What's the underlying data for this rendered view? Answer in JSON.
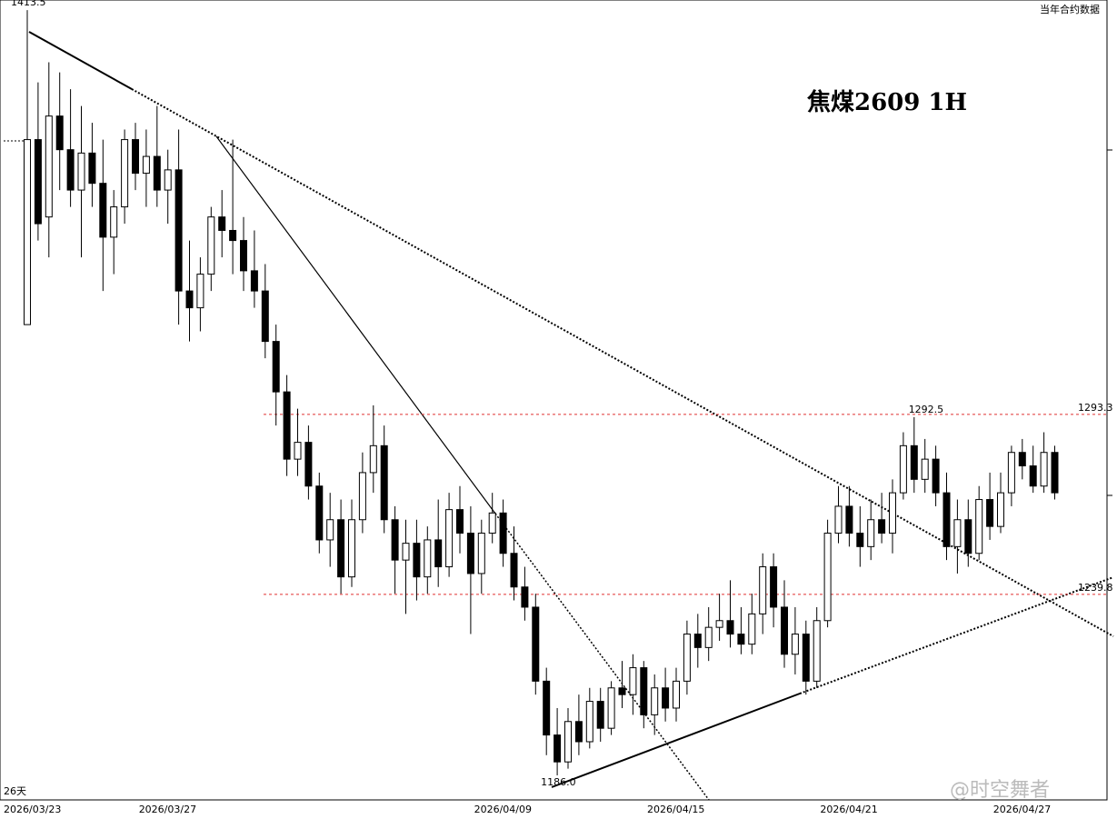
{
  "chart_data": {
    "type": "candlestick",
    "title": "焦煤2609 1H",
    "subtitle": "当年合约数据",
    "note": "26天",
    "watermark": "@时空舞者",
    "ylim": [
      1178.7,
      1416.5
    ],
    "candles": [
      [
        1320,
        1413.5,
        1320,
        1375
      ],
      [
        1375,
        1392,
        1345,
        1350
      ],
      [
        1352,
        1398,
        1340,
        1382
      ],
      [
        1382,
        1395,
        1360,
        1372
      ],
      [
        1372,
        1390,
        1355,
        1360
      ],
      [
        1360,
        1385,
        1340,
        1371
      ],
      [
        1371,
        1380,
        1355,
        1362
      ],
      [
        1362,
        1375,
        1330,
        1346
      ],
      [
        1346,
        1360,
        1335,
        1355
      ],
      [
        1355,
        1378,
        1350,
        1375
      ],
      [
        1375,
        1380,
        1360,
        1365
      ],
      [
        1365,
        1378,
        1355,
        1370
      ],
      [
        1370,
        1385,
        1355,
        1360
      ],
      [
        1360,
        1372,
        1350,
        1366
      ],
      [
        1366,
        1378,
        1320,
        1330
      ],
      [
        1330,
        1345,
        1315,
        1325
      ],
      [
        1325,
        1340,
        1318,
        1335
      ],
      [
        1335,
        1355,
        1330,
        1352
      ],
      [
        1352,
        1360,
        1340,
        1348
      ],
      [
        1348,
        1375,
        1335,
        1345
      ],
      [
        1345,
        1352,
        1330,
        1336
      ],
      [
        1336,
        1348,
        1325,
        1330
      ],
      [
        1330,
        1338,
        1310,
        1315
      ],
      [
        1315,
        1320,
        1290,
        1300
      ],
      [
        1300,
        1305,
        1275,
        1280
      ],
      [
        1280,
        1295,
        1275,
        1285
      ],
      [
        1285,
        1290,
        1268,
        1272
      ],
      [
        1272,
        1276,
        1252,
        1256
      ],
      [
        1256,
        1270,
        1248,
        1262
      ],
      [
        1262,
        1268,
        1240,
        1245
      ],
      [
        1245,
        1268,
        1242,
        1262
      ],
      [
        1262,
        1282,
        1258,
        1276
      ],
      [
        1276,
        1296,
        1270,
        1284
      ],
      [
        1284,
        1290,
        1258,
        1262
      ],
      [
        1262,
        1266,
        1240,
        1250
      ],
      [
        1250,
        1262,
        1234,
        1255
      ],
      [
        1255,
        1262,
        1238,
        1245
      ],
      [
        1245,
        1260,
        1240,
        1256
      ],
      [
        1256,
        1268,
        1242,
        1248
      ],
      [
        1248,
        1270,
        1245,
        1265
      ],
      [
        1265,
        1272,
        1252,
        1258
      ],
      [
        1258,
        1266,
        1228,
        1246
      ],
      [
        1246,
        1262,
        1240,
        1258
      ],
      [
        1258,
        1270,
        1255,
        1264
      ],
      [
        1264,
        1268,
        1248,
        1252
      ],
      [
        1252,
        1260,
        1238,
        1242
      ],
      [
        1242,
        1248,
        1232,
        1236
      ],
      [
        1236,
        1240,
        1210,
        1214
      ],
      [
        1214,
        1218,
        1192,
        1198
      ],
      [
        1198,
        1206,
        1186,
        1190
      ],
      [
        1190,
        1206,
        1188,
        1202
      ],
      [
        1202,
        1210,
        1192,
        1196
      ],
      [
        1196,
        1212,
        1194,
        1208
      ],
      [
        1208,
        1212,
        1196,
        1200
      ],
      [
        1200,
        1214,
        1198,
        1212
      ],
      [
        1212,
        1220,
        1206,
        1210
      ],
      [
        1210,
        1222,
        1204,
        1218
      ],
      [
        1218,
        1220,
        1200,
        1204
      ],
      [
        1204,
        1216,
        1198,
        1212
      ],
      [
        1212,
        1218,
        1202,
        1206
      ],
      [
        1206,
        1218,
        1202,
        1214
      ],
      [
        1214,
        1232,
        1210,
        1228
      ],
      [
        1228,
        1234,
        1218,
        1224
      ],
      [
        1224,
        1236,
        1220,
        1230
      ],
      [
        1230,
        1240,
        1226,
        1232
      ],
      [
        1232,
        1244,
        1224,
        1228
      ],
      [
        1228,
        1236,
        1222,
        1225
      ],
      [
        1225,
        1240,
        1222,
        1234
      ],
      [
        1234,
        1252,
        1228,
        1248
      ],
      [
        1248,
        1252,
        1230,
        1236
      ],
      [
        1236,
        1244,
        1218,
        1222
      ],
      [
        1222,
        1236,
        1216,
        1228
      ],
      [
        1228,
        1232,
        1210,
        1214
      ],
      [
        1214,
        1236,
        1212,
        1232
      ],
      [
        1232,
        1262,
        1230,
        1258
      ],
      [
        1258,
        1272,
        1255,
        1266
      ],
      [
        1266,
        1272,
        1254,
        1258
      ],
      [
        1258,
        1266,
        1248,
        1254
      ],
      [
        1254,
        1268,
        1250,
        1262
      ],
      [
        1262,
        1270,
        1255,
        1258
      ],
      [
        1258,
        1274,
        1252,
        1270
      ],
      [
        1270,
        1288,
        1268,
        1284
      ],
      [
        1284,
        1292.5,
        1270,
        1274
      ],
      [
        1274,
        1286,
        1270,
        1280
      ],
      [
        1280,
        1284,
        1266,
        1270
      ],
      [
        1270,
        1276,
        1250,
        1254
      ],
      [
        1254,
        1268,
        1246,
        1262
      ],
      [
        1262,
        1268,
        1248,
        1252
      ],
      [
        1252,
        1272,
        1250,
        1268
      ],
      [
        1268,
        1276,
        1256,
        1260
      ],
      [
        1260,
        1276,
        1258,
        1270
      ],
      [
        1270,
        1284,
        1266,
        1282
      ],
      [
        1282,
        1286,
        1274,
        1278
      ],
      [
        1278,
        1284,
        1270,
        1272
      ],
      [
        1272,
        1288,
        1270,
        1282
      ],
      [
        1282,
        1284,
        1268,
        1270
      ]
    ],
    "xlabels": [
      {
        "index": 0,
        "label": "2026/03/23"
      },
      {
        "index": 13,
        "label": "2026/03/27"
      },
      {
        "index": 44,
        "label": "2026/04/09"
      },
      {
        "index": 60,
        "label": "2026/04/15"
      },
      {
        "index": 76,
        "label": "2026/04/21"
      },
      {
        "index": 92,
        "label": "2026/04/27"
      }
    ],
    "levels": [
      {
        "value": 1293.3,
        "label": "1293.3",
        "color": "#e03030"
      },
      {
        "value": 1239.8,
        "label": "1239.8",
        "color": "#e03030"
      }
    ],
    "annotations": [
      {
        "index": 0,
        "value": 1413.5,
        "label": "1413.5"
      },
      {
        "index": 83,
        "value": 1292.5,
        "label": "1292.5"
      },
      {
        "index": 49,
        "value": 1186.0,
        "label": "1186.0"
      }
    ]
  }
}
